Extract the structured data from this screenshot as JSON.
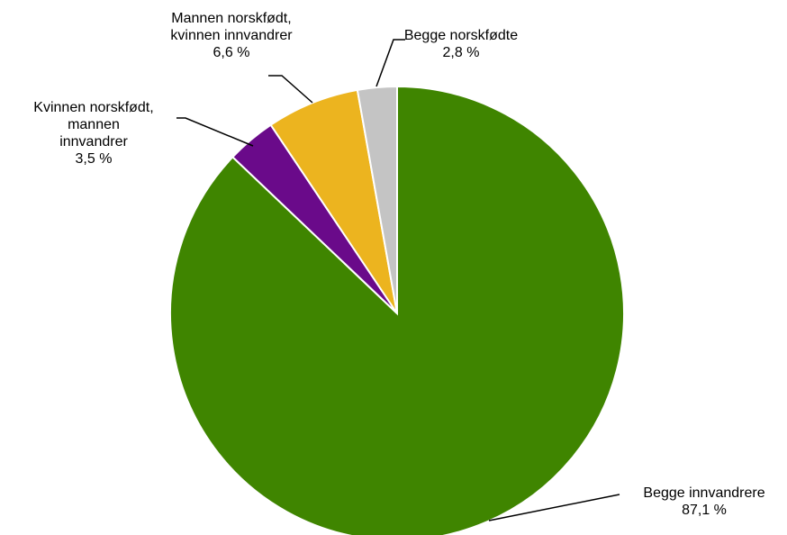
{
  "chart_data": {
    "type": "pie",
    "start_angle_deg": 0,
    "direction": "clockwise",
    "slices": [
      {
        "label_lines": [
          "Begge innvandrere"
        ],
        "value": 87.1,
        "value_text": "87,1 %",
        "color": "#3f8500"
      },
      {
        "label_lines": [
          "Kvinnen norskfødt,",
          "mannen",
          "innvandrer"
        ],
        "value": 3.5,
        "value_text": "3,5 %",
        "color": "#6a0a8a"
      },
      {
        "label_lines": [
          "Mannen norskfødt,",
          "kvinnen innvandrer"
        ],
        "value": 6.6,
        "value_text": "6,6 %",
        "color": "#ecb41f"
      },
      {
        "label_lines": [
          "Begge norskfødte"
        ],
        "value": 2.8,
        "value_text": "2,8 %",
        "color": "#c4c4c4"
      }
    ]
  }
}
